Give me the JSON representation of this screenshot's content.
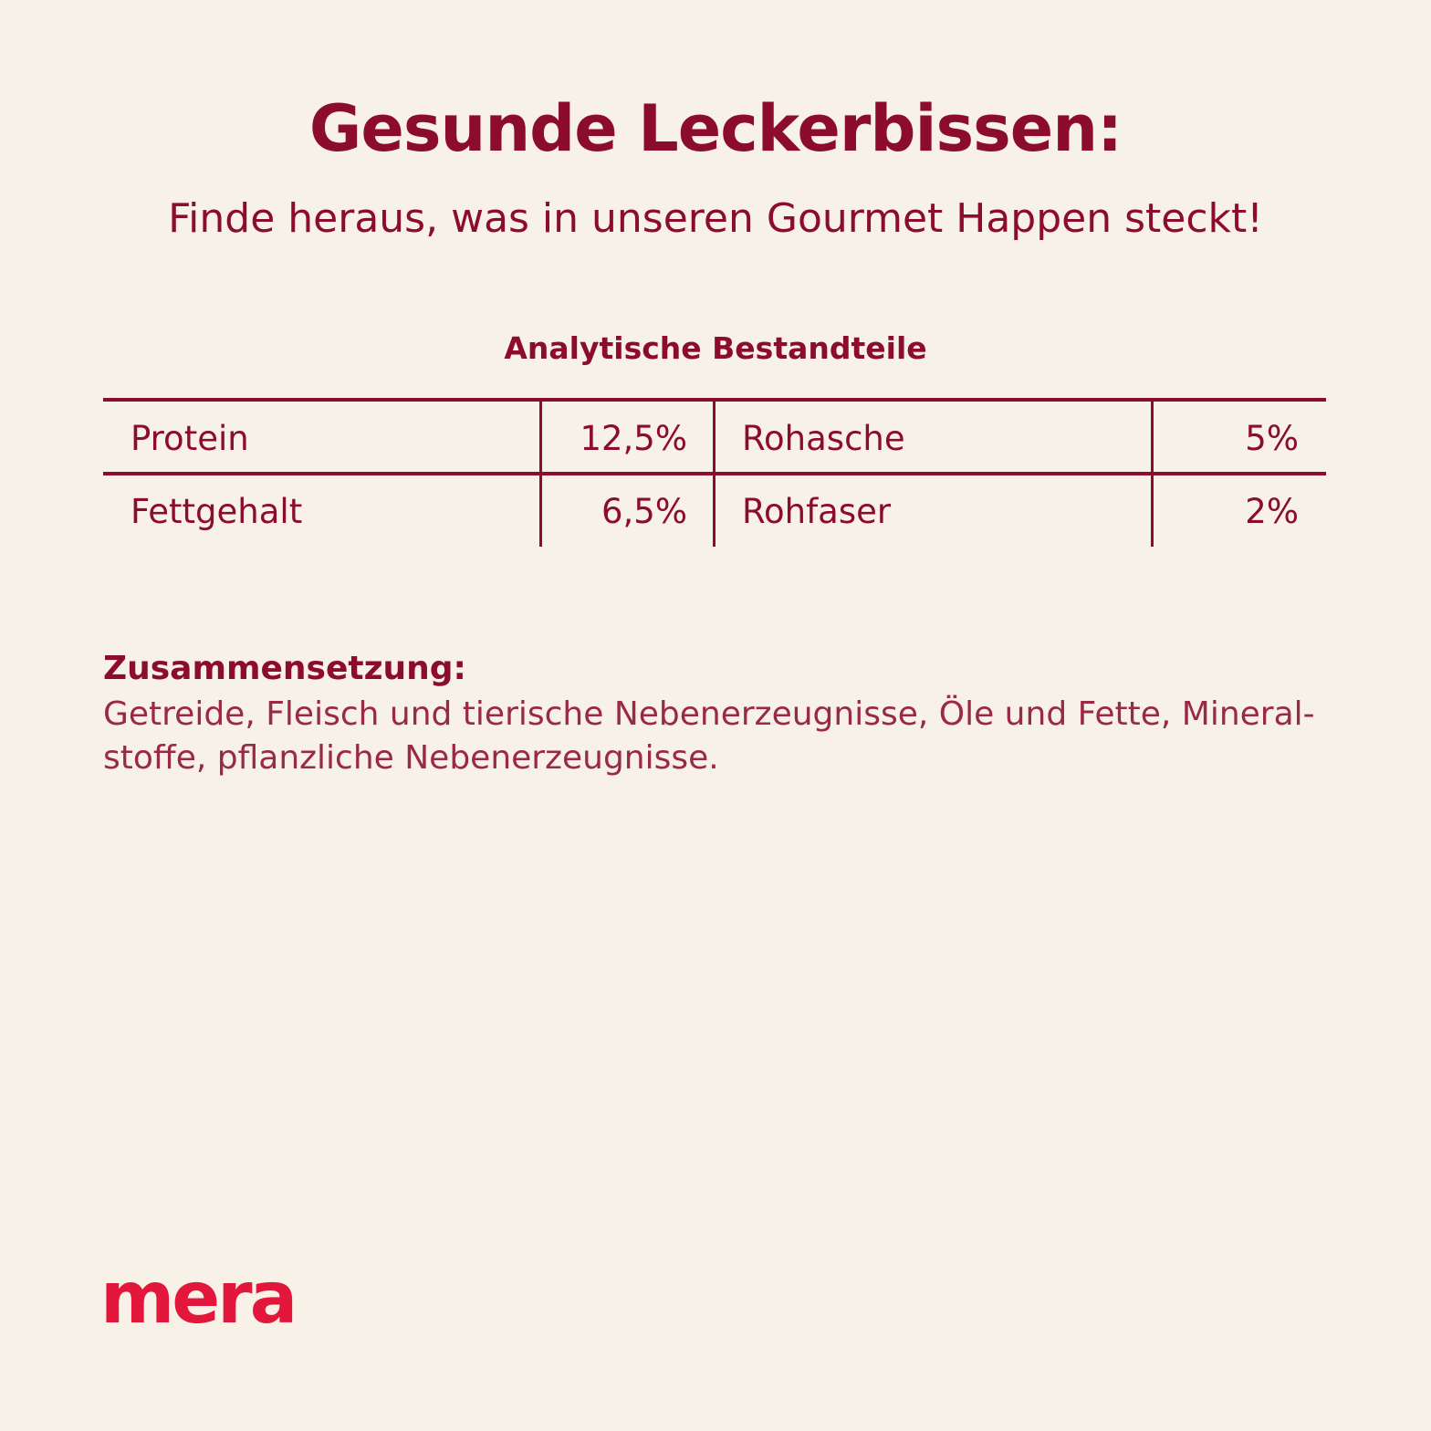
{
  "header": {
    "title": "Gesunde Leckerbissen:",
    "subtitle": "Finde heraus, was in unseren Gourmet Happen steckt!"
  },
  "table": {
    "title": "Analytische Bestandteile",
    "rows": [
      [
        "Protein",
        "12,5%",
        "Rohasche",
        "5%"
      ],
      [
        "Fettgehalt",
        "6,5%",
        "Rohfaser",
        "2%"
      ]
    ]
  },
  "composition": {
    "heading": "Zusammensetzung:",
    "lines": [
      "Getreide, Fleisch und tierische Nebenerzeugnisse, Öle und Fette, Mineral-",
      "stoffe, pflanzliche Nebenerzeugnisse."
    ]
  },
  "logo": "mera"
}
